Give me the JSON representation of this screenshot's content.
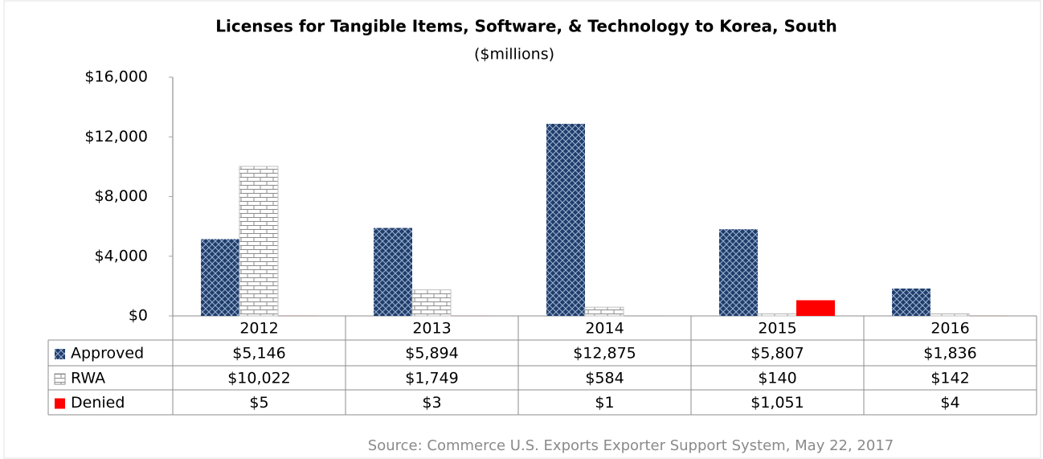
{
  "chart_data": {
    "type": "bar",
    "title": "Licenses for Tangible Items, Software, & Technology to Korea, South",
    "subtitle": "($millions)",
    "categories": [
      "2012",
      "2013",
      "2014",
      "2015",
      "2016"
    ],
    "series": [
      {
        "name": "Approved",
        "color": "#1f3d6b",
        "pattern": "crosshatch",
        "values": [
          5146,
          5894,
          12875,
          5807,
          1836
        ],
        "value_labels": [
          "$5,146",
          "$5,894",
          "$12,875",
          "$5,807",
          "$1,836"
        ]
      },
      {
        "name": "RWA",
        "color": "#8c8c8c",
        "pattern": "brick",
        "values": [
          10022,
          1749,
          584,
          140,
          142
        ],
        "value_labels": [
          "$10,022",
          "$1,749",
          "$584",
          "$140",
          "$142"
        ]
      },
      {
        "name": "Denied",
        "color": "#ff0000",
        "values": [
          5,
          3,
          1,
          1051,
          4
        ],
        "value_labels": [
          "$5",
          "$3",
          "$1",
          "$1,051",
          "$4"
        ]
      }
    ],
    "ylim": [
      0,
      16000
    ],
    "yticks": [
      {
        "value": 0,
        "label": "$0"
      },
      {
        "value": 4000,
        "label": "$4,000"
      },
      {
        "value": 8000,
        "label": "$8,000"
      },
      {
        "value": 12000,
        "label": "$12,000"
      },
      {
        "value": 16000,
        "label": "$16,000"
      }
    ],
    "grid": false,
    "source": "Source: Commerce U.S. Exports Exporter Support System, May 22, 2017"
  }
}
